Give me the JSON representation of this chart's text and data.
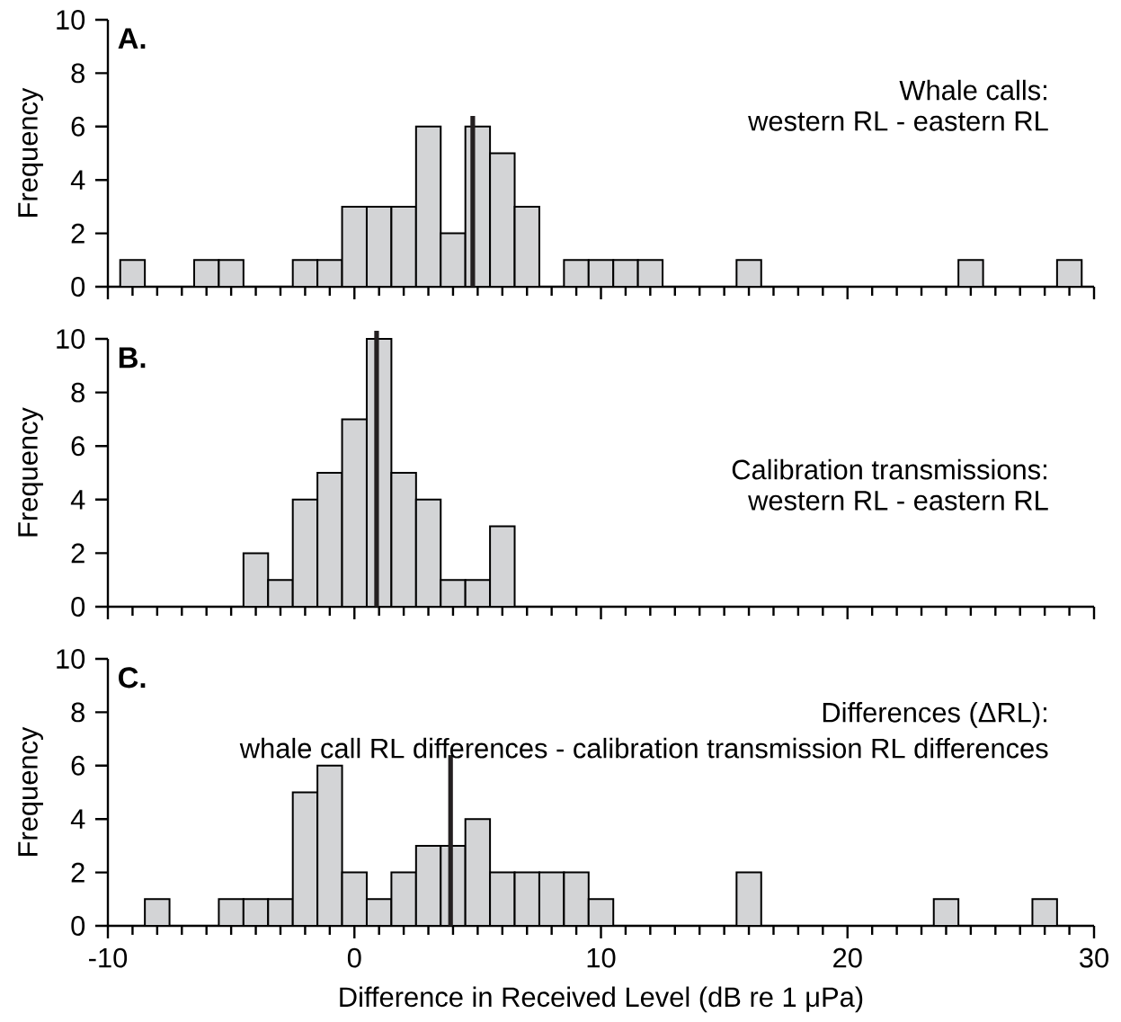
{
  "chart_data": [
    {
      "type": "histogram",
      "title": "A.",
      "annotations": [
        "Whale calls:",
        "western RL - eastern RL"
      ],
      "ylabel": "Frequency",
      "color": "#d3d4d6",
      "bins": [
        -9.5,
        -8.5,
        -7.5,
        -6.5,
        -5.5,
        -4.5,
        -3.5,
        -2.5,
        -1.5,
        -0.5,
        0.5,
        1.5,
        2.5,
        3.5,
        4.5,
        5.5,
        6.5,
        7.5,
        8.5,
        9.5,
        10.5,
        11.5,
        12.5,
        13.5,
        14.5,
        15.5,
        16.5,
        17.5,
        18.5,
        19.5,
        20.5,
        21.5,
        22.5,
        23.5,
        24.5,
        25.5,
        26.5,
        27.5,
        28.5,
        29.5
      ],
      "values": [
        1,
        0,
        0,
        1,
        1,
        0,
        0,
        1,
        1,
        3,
        3,
        3,
        6,
        2,
        6,
        5,
        3,
        0,
        1,
        1,
        1,
        1,
        0,
        0,
        0,
        1,
        0,
        0,
        0,
        0,
        0,
        0,
        0,
        0,
        1,
        0,
        0,
        0,
        1
      ],
      "ref_lines": [
        {
          "axis": "x",
          "value": 4.8,
          "color": "#231f20"
        }
      ],
      "xlim": [
        -10,
        30
      ],
      "xticks": [
        -10,
        0,
        10,
        20,
        30
      ],
      "ylim": [
        0,
        10
      ],
      "yticks": [
        0,
        2,
        4,
        6,
        8,
        10
      ],
      "tick_labels": "y"
    },
    {
      "type": "histogram",
      "title": "B.",
      "annotations": [
        "Calibration transmissions:",
        "western RL - eastern RL"
      ],
      "ylabel": "Frequency",
      "color": "#d3d4d6",
      "bins": [
        -4.5,
        -3.5,
        -2.5,
        -1.5,
        -0.5,
        0.5,
        1.5,
        2.5,
        3.5,
        4.5,
        5.5,
        6.5
      ],
      "values": [
        2,
        1,
        4,
        5,
        7,
        10,
        5,
        4,
        1,
        1,
        3
      ],
      "ref_lines": [
        {
          "axis": "x",
          "value": 0.9,
          "color": "#231f20"
        }
      ],
      "xlim": [
        -10,
        30
      ],
      "xticks": [
        -10,
        0,
        10,
        20,
        30
      ],
      "ylim": [
        0,
        10
      ],
      "yticks": [
        0,
        2,
        4,
        6,
        8,
        10
      ],
      "tick_labels": "y"
    },
    {
      "type": "histogram",
      "title": "C.",
      "annotations": [
        "Differences (ΔRL):",
        "whale call RL differences - calibration transmission RL differences"
      ],
      "ylabel": "Frequency",
      "xlabel": "Difference in Received Level (dB re 1 μPa)",
      "color": "#d3d4d6",
      "bins": [
        -8.5,
        -7.5,
        -6.5,
        -5.5,
        -4.5,
        -3.5,
        -2.5,
        -1.5,
        -0.5,
        0.5,
        1.5,
        2.5,
        3.5,
        4.5,
        5.5,
        6.5,
        7.5,
        8.5,
        9.5,
        10.5,
        11.5,
        12.5,
        13.5,
        14.5,
        15.5,
        16.5,
        17.5,
        18.5,
        19.5,
        20.5,
        21.5,
        22.5,
        23.5,
        24.5,
        25.5,
        26.5,
        27.5,
        28.5
      ],
      "values": [
        1,
        0,
        0,
        1,
        1,
        1,
        5,
        6,
        2,
        1,
        2,
        3,
        3,
        4,
        2,
        2,
        2,
        2,
        1,
        0,
        0,
        0,
        0,
        0,
        2,
        0,
        0,
        0,
        0,
        0,
        0,
        0,
        1,
        0,
        0,
        0,
        1
      ],
      "ref_lines": [
        {
          "axis": "x",
          "value": 3.9,
          "color": "#231f20"
        }
      ],
      "xlim": [
        -10,
        30
      ],
      "xticks": [
        -10,
        0,
        10,
        20,
        30
      ],
      "ylim": [
        0,
        10
      ],
      "yticks": [
        0,
        2,
        4,
        6,
        8,
        10
      ]
    }
  ]
}
